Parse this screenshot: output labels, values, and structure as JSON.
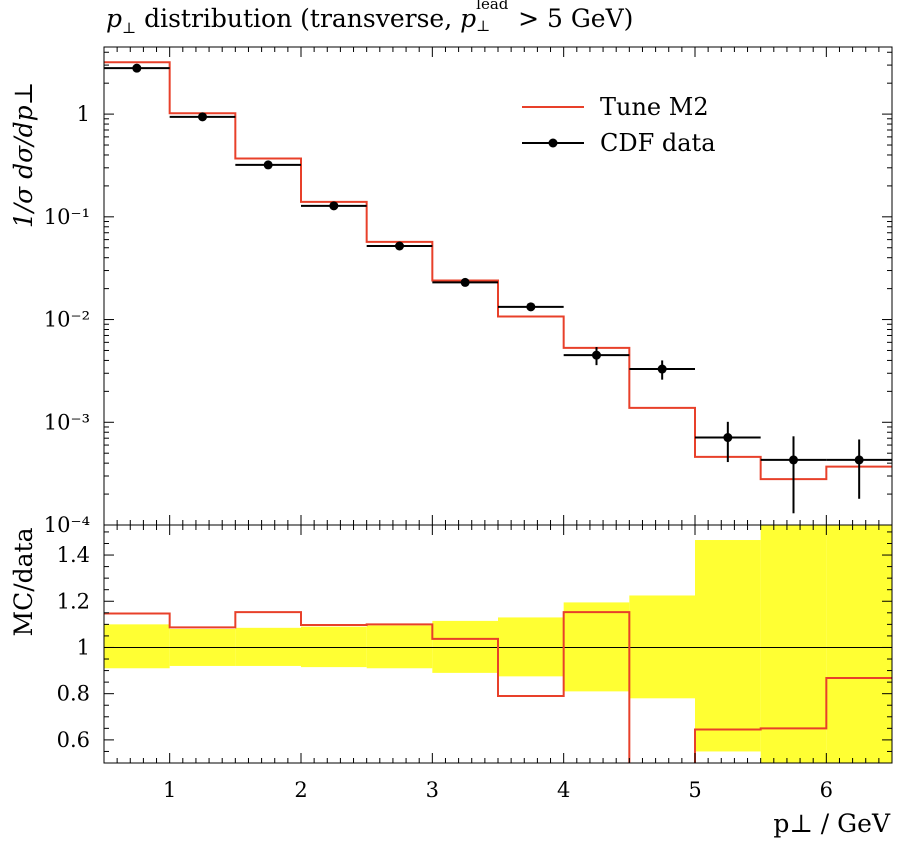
{
  "chart_data": [
    {
      "type": "line",
      "title_parts": {
        "var": "p",
        "sub": "⊥",
        "text": " distribution (transverse, ",
        "lead_var": "p",
        "lead_sup": "lead",
        "lead_sub": "⊥",
        "tail": " > 5 GeV)"
      },
      "ylabel": "1/σ dσ/dp⊥",
      "yscale": "log",
      "ylim": [
        0.0001,
        4.5
      ],
      "xlim": [
        0.5,
        6.5
      ],
      "ytick_labels": [
        "1",
        "10⁻¹",
        "10⁻²",
        "10⁻³",
        "10⁻⁴"
      ],
      "legend": {
        "placement": "top-right",
        "entries": [
          "Tune M2",
          "CDF data"
        ]
      },
      "series": [
        {
          "name": "Tune M2",
          "style": "step",
          "color": "#e8402a",
          "bin_edges": [
            0.5,
            1.0,
            1.5,
            2.0,
            2.5,
            3.0,
            3.5,
            4.0,
            4.5,
            5.0,
            5.5,
            6.0,
            6.5
          ],
          "values": [
            3.2,
            1.02,
            0.37,
            0.14,
            0.057,
            0.024,
            0.0107,
            0.0053,
            0.00138,
            0.00046,
            0.00028,
            0.00037
          ]
        },
        {
          "name": "CDF data",
          "style": "points",
          "color": "#000000",
          "x": [
            0.75,
            1.25,
            1.75,
            2.25,
            2.75,
            3.25,
            3.75,
            4.25,
            4.75,
            5.25,
            5.75,
            6.25
          ],
          "x_half_width": 0.25,
          "y": [
            2.8,
            0.94,
            0.32,
            0.128,
            0.052,
            0.023,
            0.0133,
            0.0045,
            0.0033,
            0.00071,
            0.00043,
            0.00043
          ],
          "y_err_low": [
            0,
            0,
            0,
            0,
            0,
            0,
            0.001,
            0.0009,
            0.0007,
            0.0003,
            0.0003,
            0.00025
          ],
          "y_err_high": [
            0,
            0,
            0,
            0,
            0,
            0,
            0.001,
            0.0009,
            0.0007,
            0.0003,
            0.0003,
            0.00025
          ]
        }
      ]
    },
    {
      "type": "line",
      "ylabel": "MC/data",
      "xlabel": "p⊥ / GeV",
      "ylim": [
        0.5,
        1.53
      ],
      "xlim": [
        0.5,
        6.5
      ],
      "ytick_labels": [
        "0.6",
        "0.8",
        "1",
        "1.2",
        "1.4"
      ],
      "xtick_labels": [
        "1",
        "2",
        "3",
        "4",
        "5",
        "6"
      ],
      "reference_line": 1.0,
      "band": {
        "color": "#ffff33",
        "bin_edges": [
          0.5,
          1.0,
          1.5,
          2.0,
          2.5,
          3.0,
          3.5,
          4.0,
          4.5,
          5.0,
          5.5,
          6.0,
          6.5
        ],
        "low": [
          0.91,
          0.92,
          0.92,
          0.915,
          0.91,
          0.89,
          0.875,
          0.81,
          0.78,
          0.55,
          0.5,
          0.5
        ],
        "high": [
          1.1,
          1.08,
          1.085,
          1.09,
          1.095,
          1.115,
          1.13,
          1.195,
          1.225,
          1.465,
          1.53,
          1.53
        ]
      },
      "series": [
        {
          "name": "Tune M2",
          "style": "step",
          "color": "#e8402a",
          "bin_edges": [
            0.5,
            1.0,
            1.5,
            2.0,
            2.5,
            3.0,
            3.5,
            4.0,
            4.5,
            5.0,
            5.5,
            6.0,
            6.5
          ],
          "values": [
            1.147,
            1.087,
            1.153,
            1.097,
            1.1,
            1.037,
            0.79,
            1.153,
            0.42,
            0.645,
            0.65,
            0.868
          ]
        }
      ]
    }
  ]
}
